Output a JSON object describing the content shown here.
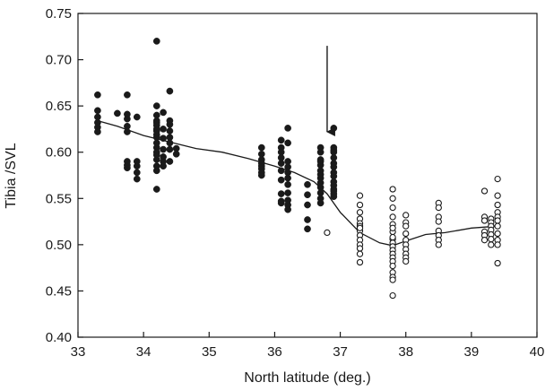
{
  "chart_data": {
    "type": "scatter",
    "title": "",
    "xlabel": "North latitude (deg.)",
    "ylabel": "Tibia /SVL",
    "xlim": [
      33,
      40
    ],
    "ylim": [
      0.4,
      0.75
    ],
    "xticks": [
      "33",
      "34",
      "35",
      "36",
      "37",
      "38",
      "39",
      "40"
    ],
    "yticks": [
      "0.40",
      "0.45",
      "0.50",
      "0.55",
      "0.60",
      "0.65",
      "0.70",
      "0.75"
    ],
    "grid": false,
    "legend": "none",
    "colors": {
      "axis": "#1a1a1a",
      "filled_marker": "#1a1a1a",
      "open_marker": "#1a1a1a"
    },
    "series": [
      {
        "marker": "filled-circle",
        "x": [
          33.3,
          33.3,
          33.3,
          33.3,
          33.3,
          33.3,
          33.6,
          33.75,
          33.75,
          33.75,
          33.75,
          33.75,
          33.75,
          33.75,
          33.75,
          33.9,
          33.9,
          33.9,
          33.9,
          33.9,
          34.2,
          34.2,
          34.2,
          34.2,
          34.2,
          34.2,
          34.2,
          34.2,
          34.2,
          34.2,
          34.2,
          34.2,
          34.2,
          34.2,
          34.2,
          34.2,
          34.2,
          34.2,
          34.3,
          34.3,
          34.3,
          34.3,
          34.3,
          34.3,
          34.3,
          34.4,
          34.4,
          34.4,
          34.4,
          34.4,
          34.4,
          34.4,
          34.4,
          34.5,
          34.5,
          35.8,
          35.8,
          35.8,
          35.8,
          35.8,
          35.8,
          35.8,
          35.8,
          36.1,
          36.1,
          36.1,
          36.1,
          36.1,
          36.1,
          36.1,
          36.1,
          36.1,
          36.1,
          36.2,
          36.2,
          36.2,
          36.2,
          36.2,
          36.2,
          36.2,
          36.2,
          36.2,
          36.2,
          36.2,
          36.5,
          36.5,
          36.5,
          36.5,
          36.5,
          36.7,
          36.7,
          36.7,
          36.7,
          36.7,
          36.7,
          36.7,
          36.7,
          36.7,
          36.7,
          36.7,
          36.7,
          36.7,
          36.9,
          36.9,
          36.9,
          36.9,
          36.9,
          36.9,
          36.9,
          36.9,
          36.9,
          36.9,
          36.9,
          36.9,
          36.9,
          36.9,
          36.9
        ],
        "y": [
          0.662,
          0.645,
          0.638,
          0.632,
          0.627,
          0.622,
          0.642,
          0.662,
          0.641,
          0.636,
          0.628,
          0.622,
          0.59,
          0.586,
          0.583,
          0.638,
          0.59,
          0.585,
          0.578,
          0.571,
          0.72,
          0.65,
          0.64,
          0.632,
          0.623,
          0.616,
          0.61,
          0.605,
          0.6,
          0.597,
          0.592,
          0.585,
          0.58,
          0.56,
          0.634,
          0.629,
          0.625,
          0.619,
          0.643,
          0.625,
          0.615,
          0.603,
          0.595,
          0.59,
          0.585,
          0.666,
          0.634,
          0.63,
          0.623,
          0.616,
          0.61,
          0.603,
          0.59,
          0.604,
          0.598,
          0.605,
          0.598,
          0.592,
          0.588,
          0.585,
          0.582,
          0.578,
          0.575,
          0.613,
          0.605,
          0.6,
          0.594,
          0.588,
          0.58,
          0.57,
          0.555,
          0.547,
          0.545,
          0.626,
          0.61,
          0.59,
          0.584,
          0.578,
          0.572,
          0.565,
          0.556,
          0.548,
          0.543,
          0.538,
          0.565,
          0.554,
          0.543,
          0.527,
          0.517,
          0.605,
          0.6,
          0.592,
          0.586,
          0.58,
          0.576,
          0.572,
          0.567,
          0.562,
          0.556,
          0.55,
          0.545,
          0.59,
          0.626,
          0.605,
          0.6,
          0.594,
          0.588,
          0.584,
          0.578,
          0.574,
          0.568,
          0.564,
          0.56,
          0.558,
          0.555,
          0.552,
          0.602
        ]
      },
      {
        "marker": "open-circle",
        "x": [
          36.8,
          37.3,
          37.3,
          37.3,
          37.3,
          37.3,
          37.3,
          37.3,
          37.3,
          37.3,
          37.3,
          37.3,
          37.3,
          37.3,
          37.3,
          37.8,
          37.8,
          37.8,
          37.8,
          37.8,
          37.8,
          37.8,
          37.8,
          37.8,
          37.8,
          37.8,
          37.8,
          37.8,
          37.8,
          37.8,
          37.8,
          37.8,
          37.8,
          37.8,
          37.8,
          38.0,
          38.0,
          38.0,
          38.0,
          38.0,
          38.0,
          38.0,
          38.0,
          38.0,
          38.0,
          38.5,
          38.5,
          38.5,
          38.5,
          38.5,
          38.5,
          38.5,
          38.5,
          39.2,
          39.2,
          39.2,
          39.2,
          39.2,
          39.2,
          39.3,
          39.3,
          39.3,
          39.3,
          39.3,
          39.3,
          39.3,
          39.4,
          39.4,
          39.4,
          39.4,
          39.4,
          39.4,
          39.4,
          39.4,
          39.4,
          39.4,
          39.4
        ],
        "y": [
          0.513,
          0.553,
          0.543,
          0.535,
          0.528,
          0.523,
          0.52,
          0.515,
          0.51,
          0.505,
          0.5,
          0.496,
          0.49,
          0.481,
          0.518,
          0.56,
          0.55,
          0.54,
          0.53,
          0.522,
          0.514,
          0.506,
          0.502,
          0.498,
          0.494,
          0.49,
          0.486,
          0.482,
          0.477,
          0.47,
          0.465,
          0.462,
          0.445,
          0.508,
          0.518,
          0.532,
          0.524,
          0.52,
          0.512,
          0.505,
          0.5,
          0.495,
          0.49,
          0.486,
          0.482,
          0.545,
          0.54,
          0.53,
          0.525,
          0.515,
          0.51,
          0.505,
          0.5,
          0.558,
          0.53,
          0.526,
          0.514,
          0.51,
          0.505,
          0.528,
          0.524,
          0.52,
          0.516,
          0.511,
          0.506,
          0.5,
          0.571,
          0.553,
          0.543,
          0.535,
          0.53,
          0.526,
          0.52,
          0.512,
          0.505,
          0.5,
          0.48
        ]
      },
      {
        "marker": "line",
        "x": [
          33.3,
          33.6,
          34.0,
          34.4,
          34.8,
          35.2,
          35.6,
          36.0,
          36.3,
          36.6,
          36.8,
          37.0,
          37.3,
          37.6,
          37.8,
          38.0,
          38.3,
          38.6,
          39.0,
          39.4
        ],
        "y": [
          0.634,
          0.628,
          0.618,
          0.611,
          0.604,
          0.6,
          0.593,
          0.585,
          0.578,
          0.568,
          0.555,
          0.535,
          0.513,
          0.502,
          0.499,
          0.504,
          0.511,
          0.513,
          0.518,
          0.52
        ]
      }
    ],
    "annotations": [
      {
        "type": "arrow",
        "x": 36.8,
        "y_top": 0.715,
        "y_tip": 0.622
      }
    ]
  }
}
